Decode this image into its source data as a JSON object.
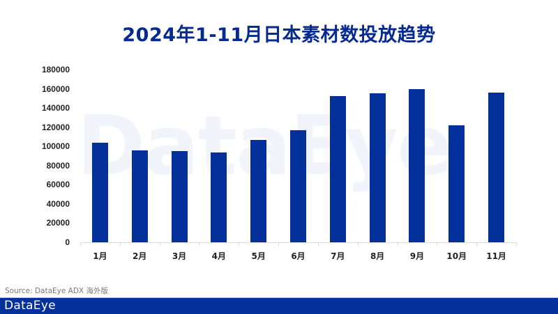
{
  "title": "2024年1-11月日本素材数投放趋势",
  "watermark": "DataEye",
  "source": "Source: DataEye ADX 海外版",
  "footer": {
    "brand": "DataEye"
  },
  "colors": {
    "bar": "#03309a",
    "title": "#062a8f",
    "footer": "#03309a"
  },
  "chart_data": {
    "type": "bar",
    "title": "2024年1-11月日本素材数投放趋势",
    "categories": [
      "1月",
      "2月",
      "3月",
      "4月",
      "5月",
      "6月",
      "7月",
      "8月",
      "9月",
      "10月",
      "11月"
    ],
    "values": [
      104000,
      95500,
      95000,
      93500,
      106500,
      117000,
      152500,
      155500,
      160000,
      122000,
      156000
    ],
    "xlabel": "",
    "ylabel": "",
    "ylim": [
      0,
      180000
    ],
    "yticks": [
      "180000",
      "160000",
      "140000",
      "120000",
      "100000",
      "80000",
      "60000",
      "40000",
      "20000",
      "0"
    ],
    "grid": false,
    "legend": "none",
    "source": "Source: DataEye ADX 海外版"
  }
}
